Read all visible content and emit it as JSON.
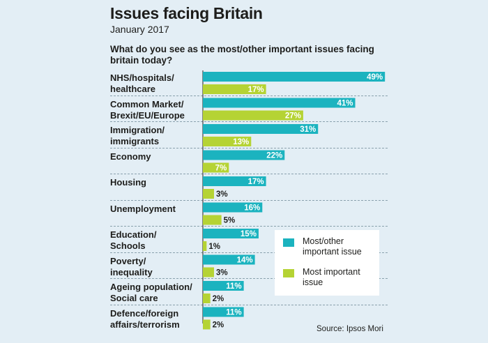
{
  "chart_data": {
    "type": "bar",
    "orientation": "horizontal",
    "title": "Issues facing Britain",
    "subtitle": "January 2017",
    "question": "What do you see as the most/other important issues facing britain today?",
    "categories": [
      "NHS/hospitals/ healthcare",
      "Common Market/ Brexit/EU/Europe",
      "Immigration/ immigrants",
      "Economy",
      "Housing",
      "Unemployment",
      "Education/ Schools",
      "Poverty/ inequality",
      "Ageing population/ Social care",
      "Defence/foreign affairs/terrorism"
    ],
    "series": [
      {
        "name": "Most/other important issue",
        "color": "#1bb3bf",
        "values": [
          49,
          41,
          31,
          22,
          17,
          16,
          15,
          14,
          11,
          11
        ],
        "labels": [
          "49%",
          "41%",
          "31%",
          "22%",
          "17%",
          "16%",
          "15%",
          "14%",
          "11%",
          "11%"
        ]
      },
      {
        "name": "Most important issue",
        "color": "#b5d334",
        "values": [
          17,
          27,
          13,
          7,
          3,
          5,
          1,
          3,
          2,
          2
        ],
        "labels": [
          "17%",
          "27%",
          "13%",
          "7%",
          "3%",
          "5%",
          "1%",
          "3%",
          "2%",
          "2%"
        ]
      }
    ],
    "xlim": [
      0,
      50
    ],
    "source": "Source: Ipsos Mori"
  }
}
